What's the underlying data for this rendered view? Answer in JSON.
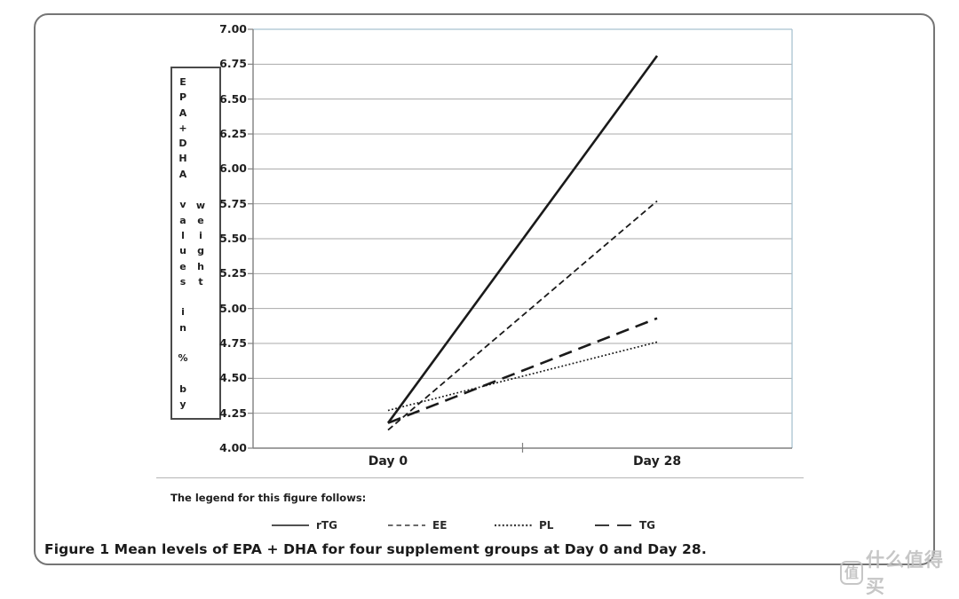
{
  "chart_data": {
    "type": "line",
    "title": "",
    "x_categories": [
      "Day 0",
      "Day 28"
    ],
    "ylabel": "EPA+DHA values in % by weight",
    "ylabel_columns": [
      "EPA+DHA values in % by",
      "weight"
    ],
    "ylim": [
      4.0,
      7.0
    ],
    "ytick_step": 0.25,
    "yticks": [
      "7.00",
      "6.75",
      "6.50",
      "6.25",
      "6.00",
      "5.75",
      "5.50",
      "5.25",
      "5.00",
      "4.75",
      "4.50",
      "4.25",
      "4.00"
    ],
    "grid": true,
    "legend_position": "bottom",
    "series": [
      {
        "name": "rTG",
        "style": "solid",
        "values": [
          4.18,
          6.81
        ]
      },
      {
        "name": "EE",
        "style": "dashed",
        "values": [
          4.13,
          5.77
        ]
      },
      {
        "name": "PL",
        "style": "dotted",
        "values": [
          4.27,
          4.76
        ]
      },
      {
        "name": "TG",
        "style": "longdash",
        "values": [
          4.18,
          4.93
        ]
      }
    ]
  },
  "legend": {
    "intro": "The legend for this figure follows:"
  },
  "caption": {
    "label": "Figure 1",
    "text": "Mean levels of EPA + DHA for four supplement groups at Day 0 and Day 28."
  },
  "watermark": {
    "badge": "值",
    "text": "什么值得买"
  },
  "colors": {
    "line": "#1a1a1a",
    "gridline": "#a8a8a8",
    "axis": "#808080",
    "plot_border": "#a9c2d1",
    "frame_border": "#757575",
    "separator": "#b5b5b5",
    "watermark": "#c0c0c0"
  }
}
